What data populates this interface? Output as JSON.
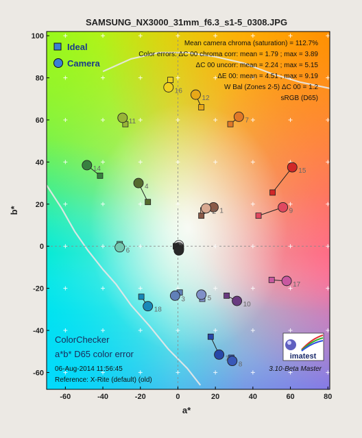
{
  "chart_data": {
    "type": "scatter",
    "title": "SAMSUNG_NX3000_31mm_f6.3_s1-5_0308.JPG",
    "xlabel": "a*",
    "ylabel": "b*",
    "xlim": [
      -70,
      81
    ],
    "ylim": [
      -68,
      102
    ],
    "xticks": [
      -60,
      -40,
      -20,
      0,
      20,
      40,
      60,
      80
    ],
    "yticks": [
      -60,
      -40,
      -20,
      0,
      20,
      40,
      60,
      80,
      100
    ],
    "grid": "dashed crosshair at a*=0 and b*=0, plus markers",
    "legend": {
      "placement": "top-left",
      "ideal": "Ideal",
      "camera": "Camera"
    },
    "stats": [
      "Mean camera chroma (saturation) = 112.7%",
      "Color errors: ΔC 00 chroma corr:  mean = 1.79 ;  max = 3.89",
      "ΔC 00 uncorr:  mean = 2.24 ;  max = 5.15",
      "ΔE 00:  mean = 4.51 ;  max = 9.19",
      "W Bal (Zones 2-5) ΔC 00 = 1.2",
      "sRGB (D65)"
    ],
    "bottom_left": [
      "ColorChecker",
      "a*b* D65 color error",
      "06-Aug-2014 11:56:45",
      "Reference: X-Rite (default) (old)"
    ],
    "bottom_right": [
      "3.10-Beta  Master"
    ],
    "logo_text": "imatest",
    "patches": [
      {
        "id": "1",
        "ideal": [
          12.5,
          14.5
        ],
        "camera": [
          19,
          18.5
        ],
        "color": "#8a5a48"
      },
      {
        "id": "2",
        "ideal": [
          13.5,
          17
        ],
        "camera": [
          15,
          18
        ],
        "color": "#d8a890"
      },
      {
        "id": "4",
        "ideal": [
          -16,
          21
        ],
        "camera": [
          -21,
          30
        ],
        "color": "#556b2f"
      },
      {
        "id": "6",
        "ideal": [
          -31,
          1
        ],
        "camera": [
          -31,
          -0.5
        ],
        "color": "#73c8b0"
      },
      {
        "id": "7",
        "ideal": [
          28,
          58
        ],
        "camera": [
          32.5,
          61.5
        ],
        "color": "#e07828"
      },
      {
        "id": "9",
        "ideal": [
          43,
          14.5
        ],
        "camera": [
          56,
          18.5
        ],
        "color": "#e04860"
      },
      {
        "id": "11",
        "ideal": [
          -28,
          58
        ],
        "camera": [
          -29.5,
          61
        ],
        "color": "#98b438"
      },
      {
        "id": "12",
        "ideal": [
          12.5,
          66
        ],
        "camera": [
          9.5,
          72
        ],
        "color": "#e8a818"
      },
      {
        "id": "13",
        "ideal": [
          17.5,
          -43
        ],
        "camera": [
          22,
          -51.5
        ],
        "color": "#2848a8"
      },
      {
        "id": "14",
        "ideal": [
          -41.5,
          33.5
        ],
        "camera": [
          -48.5,
          38.5
        ],
        "color": "#388040"
      },
      {
        "id": "15",
        "ideal": [
          50.5,
          25.5
        ],
        "camera": [
          61,
          37.5
        ],
        "color": "#d02828"
      },
      {
        "id": "16",
        "ideal": [
          -4,
          79
        ],
        "camera": [
          -5,
          75.5
        ],
        "color": "#f0d020"
      },
      {
        "id": "17",
        "ideal": [
          50,
          -16
        ],
        "camera": [
          58,
          -16.5
        ],
        "color": "#c858a0"
      },
      {
        "id": "18",
        "ideal": [
          -19.5,
          -24
        ],
        "camera": [
          -16,
          -28.5
        ],
        "color": "#1888b8"
      },
      {
        "id": "3",
        "ideal": [
          1,
          -22
        ],
        "camera": [
          -1.5,
          -23.5
        ],
        "color": "#6080b8"
      },
      {
        "id": "5",
        "ideal": [
          13,
          -25
        ],
        "camera": [
          12.5,
          -23
        ],
        "color": "#8090c8"
      },
      {
        "id": "10",
        "ideal": [
          26,
          -23.5
        ],
        "camera": [
          31.5,
          -26
        ],
        "color": "#6a3a80"
      },
      {
        "id": "8",
        "ideal": [
          28.5,
          -53
        ],
        "camera": [
          29,
          -54.5
        ],
        "color": "#3858b8"
      },
      {
        "id": "19",
        "ideal": [
          -1,
          0
        ],
        "camera": [
          0.5,
          0.5
        ],
        "color": "#f0f0f0"
      },
      {
        "id": "20",
        "ideal": [
          -1,
          0
        ],
        "camera": [
          0.5,
          -0.5
        ],
        "color": "#c8c8c8"
      },
      {
        "id": "21",
        "ideal": [
          -1,
          0
        ],
        "camera": [
          0.5,
          -1
        ],
        "color": "#a0a0a0"
      },
      {
        "id": "22",
        "ideal": [
          -1,
          0
        ],
        "camera": [
          0.5,
          -1.5
        ],
        "color": "#787878"
      },
      {
        "id": "23",
        "ideal": [
          -1,
          0
        ],
        "camera": [
          0.5,
          -1.5
        ],
        "color": "#505050"
      },
      {
        "id": "24",
        "ideal": [
          -1,
          0
        ],
        "camera": [
          0.5,
          -2
        ],
        "color": "#282828"
      }
    ],
    "label_offsets_note": "patch labels drawn beside camera markers",
    "gamut_curves": [
      {
        "points": [
          [
            -70,
            29
          ],
          [
            -62,
            18
          ],
          [
            -55,
            7
          ],
          [
            -48,
            -2
          ],
          [
            -40,
            -11
          ],
          [
            -33,
            -18
          ],
          [
            -25,
            -28
          ],
          [
            -15,
            -38
          ],
          [
            -5,
            -49
          ],
          [
            5,
            -58
          ],
          [
            12,
            -66
          ]
        ]
      },
      {
        "points": [
          [
            -40,
            83
          ],
          [
            -25,
            89
          ],
          [
            -10,
            92
          ],
          [
            5,
            92
          ],
          [
            20,
            90
          ],
          [
            35,
            87
          ],
          [
            50,
            82
          ],
          [
            65,
            78
          ],
          [
            81,
            75
          ]
        ]
      }
    ],
    "colors": {
      "frame": "#000000",
      "background": "#ece9e4",
      "camera_outline": "#222222"
    }
  }
}
